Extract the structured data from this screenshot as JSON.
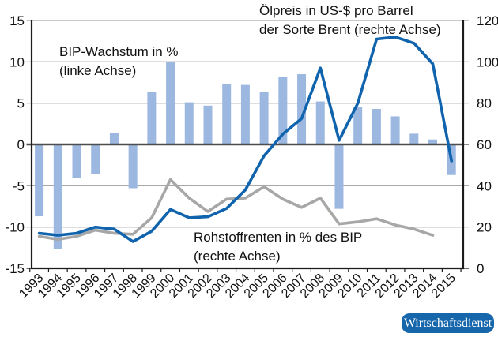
{
  "chart_data": {
    "type": "bar-line-combo",
    "years": [
      "1993",
      "1994",
      "1995",
      "1996",
      "1997",
      "1998",
      "1999",
      "2000",
      "2001",
      "2002",
      "2003",
      "2004",
      "2005",
      "2006",
      "2007",
      "2008",
      "2009",
      "2010",
      "2011",
      "2012",
      "2013",
      "2014",
      "2015"
    ],
    "series": [
      {
        "name": "BIP-Wachstum in %",
        "type": "bar",
        "axis": "left",
        "color": "#9cb8e1",
        "values": [
          -8.7,
          -12.7,
          -4.1,
          -3.6,
          1.4,
          -5.3,
          6.4,
          10.0,
          5.1,
          4.7,
          7.3,
          7.2,
          6.4,
          8.2,
          8.5,
          5.2,
          -7.8,
          4.5,
          4.3,
          3.4,
          1.3,
          0.6,
          -3.7
        ]
      },
      {
        "name": "Ölpreis in US-$ pro Barrel der Sorte Brent",
        "type": "line",
        "axis": "right",
        "color": "#1063ad",
        "values": [
          17,
          16,
          17,
          20,
          19,
          13,
          18,
          28.5,
          24.5,
          25,
          29,
          38,
          54.5,
          65,
          72.5,
          97,
          62,
          80,
          111,
          112,
          109,
          99,
          52
        ]
      },
      {
        "name": "Rohstoffrenten in % des BIP",
        "type": "line",
        "axis": "right",
        "color": "#a7a7a7",
        "values": [
          15.5,
          14,
          15.5,
          18.5,
          17,
          16.5,
          24.5,
          43,
          34,
          27.5,
          33.5,
          34,
          39.5,
          33.5,
          29.5,
          34,
          21.5,
          22.5,
          24,
          21,
          19,
          16,
          null
        ]
      }
    ],
    "left_axis": {
      "min": -15,
      "max": 15,
      "ticks": [
        15,
        10,
        5,
        0,
        -5,
        -10,
        -15
      ],
      "tick_labels": [
        "15",
        "10",
        "5",
        "0",
        "-5",
        "-10",
        "-15"
      ]
    },
    "right_axis": {
      "min": 0,
      "max": 120,
      "ticks": [
        120,
        100,
        80,
        60,
        40,
        20,
        0
      ],
      "tick_labels": [
        "120",
        "100",
        "80",
        "60",
        "40",
        "20",
        "0"
      ]
    },
    "grid": true,
    "annotations": {
      "bip": {
        "line1": "BIP-Wachstum in %",
        "line2": "(linke Achse)"
      },
      "oil": {
        "line1": "Ölpreis in US-$ pro Barrel",
        "line2": "der Sorte Brent (rechte Achse)"
      },
      "rohstoff": {
        "line1": "Rohstoffrenten in % des BIP",
        "line2": "(rechte Achse)"
      }
    },
    "style": {
      "grid_color": "#a8a8a8",
      "zero_line_color": "#4d4d4d",
      "spine_color": "#1c1c1c",
      "text_color": "#111111",
      "badge_bg": "#1566ab",
      "badge_text_color": "#ffffff"
    },
    "badge": "Wirtschaftsdienst"
  }
}
